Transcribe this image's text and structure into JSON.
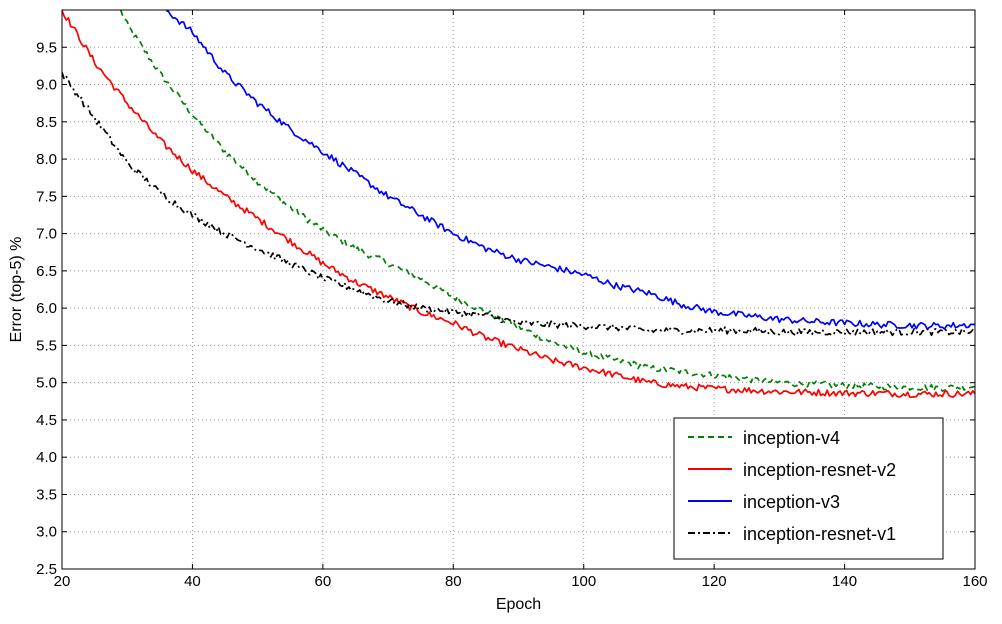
{
  "chart_data": {
    "type": "line",
    "title": "",
    "xlabel": "Epoch",
    "ylabel": "Error (top-5) %",
    "xlim": [
      20,
      160
    ],
    "ylim": [
      2.5,
      10.0
    ],
    "x_ticks": [
      20,
      40,
      60,
      80,
      100,
      120,
      140,
      160
    ],
    "x_tick_labels": [
      "20",
      "40",
      "60",
      "80",
      "100",
      "120",
      "140",
      "160"
    ],
    "y_ticks": [
      2.5,
      3.0,
      3.5,
      4.0,
      4.5,
      5.0,
      5.5,
      6.0,
      6.5,
      7.0,
      7.5,
      8.0,
      8.5,
      9.0,
      9.5
    ],
    "y_tick_labels": [
      "2.5",
      "3.0",
      "3.5",
      "4.0",
      "4.5",
      "5.0",
      "5.5",
      "6.0",
      "6.5",
      "7.0",
      "7.5",
      "8.0",
      "8.5",
      "9.0",
      "9.5"
    ],
    "grid": true,
    "legend_position": "lower-right",
    "series": [
      {
        "name": "inception-v4",
        "color": "#008000",
        "style": "dashed",
        "x": [
          29,
          30,
          35,
          40,
          45,
          50,
          55,
          60,
          65,
          70,
          75,
          80,
          85,
          90,
          95,
          100,
          105,
          110,
          115,
          120,
          125,
          130,
          135,
          140,
          145,
          150,
          155,
          160
        ],
        "y": [
          10.0,
          9.8,
          9.15,
          8.6,
          8.1,
          7.7,
          7.35,
          7.05,
          6.8,
          6.6,
          6.4,
          6.15,
          5.95,
          5.75,
          5.55,
          5.4,
          5.3,
          5.2,
          5.15,
          5.1,
          5.05,
          5.0,
          4.98,
          4.96,
          4.95,
          4.94,
          4.93,
          4.95
        ]
      },
      {
        "name": "inception-resnet-v2",
        "color": "#ff0000",
        "style": "solid",
        "x": [
          20,
          25,
          30,
          35,
          40,
          45,
          50,
          55,
          60,
          65,
          70,
          75,
          80,
          85,
          90,
          95,
          100,
          105,
          110,
          115,
          120,
          125,
          130,
          135,
          140,
          145,
          150,
          155,
          160
        ],
        "y": [
          10.0,
          9.3,
          8.75,
          8.25,
          7.85,
          7.5,
          7.2,
          6.9,
          6.6,
          6.35,
          6.15,
          5.95,
          5.8,
          5.6,
          5.45,
          5.3,
          5.2,
          5.1,
          5.0,
          4.95,
          4.92,
          4.9,
          4.88,
          4.87,
          4.86,
          4.86,
          4.85,
          4.85,
          4.85
        ]
      },
      {
        "name": "inception-v3",
        "color": "#0000ff",
        "style": "solid",
        "x": [
          36,
          40,
          45,
          50,
          55,
          60,
          65,
          70,
          75,
          80,
          85,
          90,
          95,
          100,
          105,
          110,
          115,
          120,
          125,
          130,
          135,
          140,
          145,
          150,
          155,
          160
        ],
        "y": [
          10.0,
          9.7,
          9.15,
          8.75,
          8.4,
          8.1,
          7.8,
          7.5,
          7.25,
          7.0,
          6.8,
          6.65,
          6.55,
          6.45,
          6.3,
          6.2,
          6.05,
          5.95,
          5.9,
          5.85,
          5.82,
          5.8,
          5.78,
          5.77,
          5.76,
          5.78
        ]
      },
      {
        "name": "inception-resnet-v1",
        "color": "#000000",
        "style": "dashdot",
        "x": [
          20,
          25,
          30,
          35,
          40,
          45,
          50,
          55,
          60,
          65,
          70,
          75,
          80,
          85,
          90,
          95,
          100,
          105,
          110,
          115,
          120,
          125,
          130,
          135,
          140,
          145,
          150,
          155,
          160
        ],
        "y": [
          9.15,
          8.55,
          7.95,
          7.55,
          7.25,
          7.0,
          6.8,
          6.6,
          6.4,
          6.25,
          6.1,
          6.0,
          5.95,
          5.9,
          5.8,
          5.78,
          5.76,
          5.74,
          5.7,
          5.7,
          5.7,
          5.7,
          5.68,
          5.68,
          5.68,
          5.68,
          5.68,
          5.68,
          5.68
        ]
      }
    ]
  }
}
